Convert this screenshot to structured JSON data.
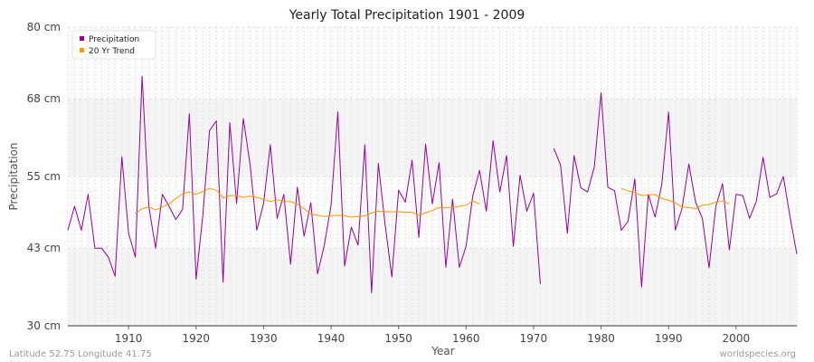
{
  "chart_data": {
    "type": "line",
    "title": "Yearly Total Precipitation 1901 - 2009",
    "xlabel": "Year",
    "ylabel": "Precipitation",
    "xlim": [
      1901,
      2009
    ],
    "ylim": [
      30,
      80
    ],
    "y_ticks": [
      30,
      43,
      55,
      68,
      80
    ],
    "y_tick_labels": [
      "30 cm",
      "43 cm",
      "55 cm",
      "68 cm",
      "80 cm"
    ],
    "x_ticks": [
      1910,
      1920,
      1930,
      1940,
      1950,
      1960,
      1970,
      1980,
      1990,
      2000
    ],
    "x_tick_labels": [
      "1910",
      "1920",
      "1930",
      "1940",
      "1950",
      "1960",
      "1970",
      "1980",
      "1990",
      "2000"
    ],
    "legend_position": "top-left",
    "series": [
      {
        "name": "Precipitation",
        "color": "#990099",
        "x": [
          1901,
          1902,
          1903,
          1904,
          1905,
          1906,
          1907,
          1908,
          1909,
          1910,
          1911,
          1912,
          1913,
          1914,
          1915,
          1916,
          1917,
          1918,
          1919,
          1920,
          1921,
          1922,
          1923,
          1924,
          1925,
          1926,
          1927,
          1928,
          1929,
          1930,
          1931,
          1932,
          1933,
          1934,
          1935,
          1936,
          1937,
          1938,
          1939,
          1940,
          1941,
          1942,
          1943,
          1944,
          1945,
          1946,
          1947,
          1948,
          1949,
          1950,
          1951,
          1952,
          1953,
          1954,
          1955,
          1956,
          1957,
          1958,
          1959,
          1960,
          1961,
          1962,
          1963,
          1964,
          1965,
          1966,
          1967,
          1968,
          1969,
          1970,
          1971,
          1972,
          1973,
          1974,
          1975,
          1976,
          1977,
          1978,
          1979,
          1980,
          1981,
          1982,
          1983,
          1984,
          1985,
          1986,
          1987,
          1988,
          1989,
          1990,
          1991,
          1992,
          1993,
          1994,
          1995,
          1996,
          1997,
          1998,
          1999,
          2000,
          2001,
          2002,
          2003,
          2004,
          2005,
          2006,
          2007,
          2008,
          2009
        ],
        "values": [
          46,
          50,
          46,
          52,
          43,
          43,
          41.5,
          38.3,
          58.3,
          45.5,
          41.5,
          71.8,
          50,
          43,
          52,
          50,
          47.8,
          49.5,
          65.5,
          37.8,
          48.5,
          62.7,
          64.3,
          37.3,
          64,
          50.5,
          64.7,
          57,
          46,
          50.5,
          60.3,
          48,
          52,
          40.3,
          53.2,
          45,
          50.6,
          38.7,
          43.5,
          50.2,
          65.8,
          40,
          46.5,
          43.5,
          60.3,
          35.5,
          57.2,
          47,
          38.2,
          52.7,
          50.7,
          57.7,
          44.8,
          60.4,
          50.4,
          57.3,
          39.8,
          51.2,
          39.8,
          43.3,
          51.8,
          56,
          49.2,
          61,
          52.4,
          58.5,
          43.3,
          55.2,
          49.2,
          52.2,
          37,
          null,
          59.7,
          56.9,
          45.5,
          58.5,
          53.1,
          52.4,
          56.6,
          69,
          53.2,
          52.6,
          46,
          47.5,
          54.6,
          36.5,
          52,
          48.2,
          53.7,
          65.8,
          46,
          49.7,
          57.1,
          50.7,
          48,
          39.7,
          50,
          53.8,
          42.7,
          52,
          51.8,
          48,
          50.8,
          58.2,
          51.5,
          52.1,
          55,
          48.2,
          42
        ]
      },
      {
        "name": "20 Yr Trend",
        "color": "#ff9900",
        "x": [
          1911,
          1912,
          1913,
          1914,
          1915,
          1916,
          1917,
          1918,
          1919,
          1920,
          1921,
          1922,
          1923,
          1924,
          1925,
          1926,
          1927,
          1928,
          1929,
          1930,
          1931,
          1932,
          1933,
          1934,
          1935,
          1936,
          1937,
          1938,
          1939,
          1940,
          1941,
          1942,
          1943,
          1944,
          1945,
          1946,
          1947,
          1948,
          1949,
          1950,
          1951,
          1952,
          1953,
          1954,
          1955,
          1956,
          1957,
          1958,
          1959,
          1960,
          1961,
          1962,
          1963,
          1964,
          1965,
          1966,
          1967,
          1968,
          1969,
          1970,
          1971,
          1972,
          1973,
          1974,
          1975,
          1976,
          1977,
          1978,
          1979,
          1980,
          1981,
          1982,
          1983,
          1984,
          1985,
          1986,
          1987,
          1988,
          1989,
          1990,
          1991,
          1992,
          1993,
          1994,
          1995,
          1996,
          1997,
          1998,
          1999
        ],
        "values": [
          48.8,
          49.6,
          49.9,
          49.4,
          49.9,
          50.4,
          51.3,
          52.1,
          52.4,
          52,
          52.5,
          53,
          52.7,
          51.4,
          51.8,
          51.8,
          51.5,
          51.7,
          51.5,
          51.2,
          50.8,
          51.1,
          50.8,
          50.8,
          50.4,
          49.6,
          48.7,
          48.5,
          48.3,
          48.4,
          48.5,
          48.4,
          48.2,
          48.3,
          48.4,
          48.9,
          49.2,
          49.1,
          49.1,
          49.1,
          49,
          49,
          48.5,
          48.9,
          49.3,
          49.8,
          49.8,
          49.8,
          50,
          50.2,
          50.9,
          50.4,
          null,
          null,
          null,
          null,
          null,
          null,
          null,
          null,
          null,
          null,
          null,
          null,
          null,
          null,
          null,
          null,
          null,
          null,
          null,
          null,
          53,
          52.6,
          52.3,
          51.8,
          51.9,
          52,
          51.3,
          51,
          50.6,
          49.9,
          49.8,
          49.6,
          50.2,
          50.3,
          50.7,
          50.9,
          50.4
        ]
      }
    ],
    "footer_left": "Latitude 52.75 Longitude 41.75",
    "footer_right": "worldspecies.org"
  }
}
